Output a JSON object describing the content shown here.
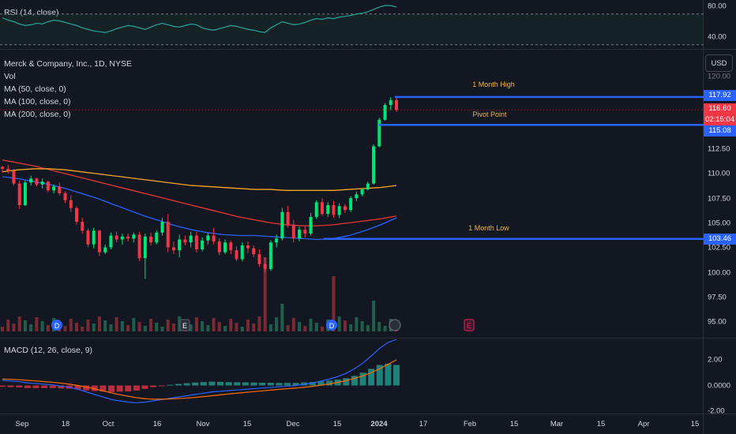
{
  "symbol_title": "Merck & Company, Inc., 1D, NYSE",
  "currency": "USD",
  "indicators": {
    "vol": "Vol",
    "ma50": "MA (50, close, 0)",
    "ma100": "MA (100, close, 0)",
    "ma200": "MA (200, close, 0)",
    "rsi": "RSI (14, close)",
    "macd": "MACD (12, 26, close, 9)"
  },
  "rsi_axis": {
    "ticks": [
      "80.00",
      "40.00"
    ]
  },
  "price_axis": {
    "ticks": [
      "120.00",
      "112.50",
      "110.00",
      "107.50",
      "105.00",
      "102.50",
      "100.00",
      "97.50",
      "95.00"
    ]
  },
  "macd_axis": {
    "ticks": [
      "2.00",
      "0.0000",
      "-2.00"
    ]
  },
  "x_axis": {
    "labels": [
      "Sep",
      "18",
      "Oct",
      "16",
      "Nov",
      "15",
      "Dec",
      "15",
      "2024",
      "17",
      "Feb",
      "15",
      "Mar",
      "15",
      "Apr",
      "15"
    ]
  },
  "levels": {
    "month_high": {
      "label": "1 Month High",
      "value": "117.92"
    },
    "pivot": {
      "label": "Pivot Point",
      "value": "115.08"
    },
    "month_low": {
      "label": "1 Month Low",
      "value": "103.46"
    }
  },
  "last_price": {
    "value": "116.60",
    "countdown": "02:15:04"
  },
  "event_markers": [
    "D",
    "E",
    "D",
    "E"
  ],
  "colors": {
    "background": "#131722",
    "up": "#00e676",
    "down": "#f23645",
    "ma50": "#2962ff",
    "ma100": "#e53935",
    "ma200": "#f5a623",
    "level_line": "#2962ff",
    "level_label": "#f2b640",
    "rsi": "#26a69a"
  },
  "chart_data": {
    "type": "candlestick",
    "title": "Merck & Company, Inc., 1D, NYSE",
    "ylim": [
      94,
      121.5
    ],
    "series": [
      {
        "name": "MA (50, close, 0)",
        "values": [
          109.8,
          109.6,
          109.3,
          109,
          108.6,
          108.1,
          107.6,
          107,
          106.4,
          105.8,
          105.3,
          104.8,
          104.4,
          104.1,
          103.9,
          103.8,
          103.8,
          103.7,
          103.6,
          103.5,
          103.4,
          103.5,
          103.8,
          104.3,
          104.9,
          105.6
        ]
      },
      {
        "name": "MA (100, close, 0)",
        "values": [
          111.5,
          111.2,
          110.9,
          110.5,
          110.1,
          109.7,
          109.3,
          108.9,
          108.5,
          108.1,
          107.7,
          107.3,
          106.9,
          106.5,
          106.1,
          105.7,
          105.4,
          105.1,
          104.9,
          104.8,
          104.8,
          104.9,
          105.1,
          105.3,
          105.5,
          105.8
        ]
      },
      {
        "name": "MA (200, close, 0)",
        "values": [
          110.3,
          110.5,
          110.6,
          110.6,
          110.5,
          110.3,
          110.1,
          109.9,
          109.7,
          109.5,
          109.3,
          109.1,
          108.9,
          108.8,
          108.7,
          108.6,
          108.5,
          108.5,
          108.4,
          108.4,
          108.4,
          108.4,
          108.5,
          108.6,
          108.7,
          108.9
        ]
      }
    ],
    "candles": [
      [
        110.8,
        110.9,
        110.2,
        110.6
      ],
      [
        110.6,
        111.0,
        110.1,
        110.4
      ],
      [
        110.4,
        110.6,
        108.9,
        109.1
      ],
      [
        109.1,
        109.4,
        106.5,
        106.9
      ],
      [
        106.9,
        109.4,
        106.8,
        109.2
      ],
      [
        109.2,
        109.9,
        108.9,
        109.6
      ],
      [
        109.6,
        109.7,
        108.8,
        109.0
      ],
      [
        109.0,
        109.6,
        108.6,
        109.3
      ],
      [
        109.3,
        109.4,
        108.2,
        108.4
      ],
      [
        108.4,
        109.0,
        108.1,
        108.8
      ],
      [
        108.8,
        109.2,
        107.9,
        108.1
      ],
      [
        108.1,
        108.3,
        107.1,
        107.4
      ],
      [
        107.4,
        107.9,
        106.2,
        106.6
      ],
      [
        106.6,
        106.8,
        104.9,
        105.2
      ],
      [
        105.2,
        105.6,
        104.0,
        104.3
      ],
      [
        104.3,
        104.5,
        102.6,
        102.9
      ],
      [
        102.9,
        104.6,
        102.5,
        104.3
      ],
      [
        104.3,
        104.4,
        101.7,
        102.1
      ],
      [
        102.1,
        102.9,
        101.9,
        102.6
      ],
      [
        102.6,
        104.1,
        102.4,
        103.8
      ],
      [
        103.8,
        104.2,
        103.1,
        103.4
      ],
      [
        103.4,
        104.0,
        102.9,
        103.7
      ],
      [
        103.7,
        104.0,
        103.2,
        103.5
      ],
      [
        103.5,
        104.1,
        103.1,
        103.9
      ],
      [
        103.9,
        104.2,
        101.2,
        101.5
      ],
      [
        101.5,
        104.0,
        99.4,
        103.7
      ],
      [
        103.7,
        104.1,
        102.8,
        103.1
      ],
      [
        103.1,
        104.3,
        102.9,
        104.1
      ],
      [
        104.1,
        105.6,
        103.8,
        105.2
      ],
      [
        105.2,
        106.0,
        102.1,
        102.6
      ],
      [
        102.6,
        103.2,
        101.9,
        102.3
      ],
      [
        102.3,
        103.9,
        101.6,
        103.4
      ],
      [
        103.4,
        103.8,
        102.8,
        103.1
      ],
      [
        103.1,
        104.2,
        102.6,
        103.8
      ],
      [
        103.8,
        104.2,
        102.1,
        102.4
      ],
      [
        102.4,
        103.6,
        102.2,
        103.3
      ],
      [
        103.3,
        104.1,
        102.9,
        103.8
      ],
      [
        103.8,
        104.6,
        102.9,
        103.2
      ],
      [
        103.2,
        103.5,
        101.8,
        102.1
      ],
      [
        102.1,
        103.4,
        101.9,
        103.1
      ],
      [
        103.1,
        103.3,
        101.9,
        102.3
      ],
      [
        102.3,
        102.7,
        101.2,
        101.4
      ],
      [
        101.4,
        103.1,
        101.2,
        102.8
      ],
      [
        102.8,
        103.2,
        102.0,
        102.5
      ],
      [
        102.5,
        102.8,
        101.6,
        101.9
      ],
      [
        101.9,
        102.4,
        100.6,
        100.9
      ],
      [
        100.9,
        101.6,
        100.1,
        100.4
      ],
      [
        100.4,
        103.3,
        100.2,
        103.1
      ],
      [
        103.1,
        103.9,
        102.6,
        103.5
      ],
      [
        103.5,
        106.6,
        103.3,
        106.2
      ],
      [
        106.2,
        106.8,
        104.6,
        104.9
      ],
      [
        104.9,
        105.4,
        103.1,
        103.5
      ],
      [
        103.5,
        104.7,
        103.2,
        104.4
      ],
      [
        104.4,
        104.8,
        103.6,
        104.0
      ],
      [
        104.0,
        106.1,
        103.8,
        105.7
      ],
      [
        105.7,
        107.4,
        105.5,
        107.2
      ],
      [
        107.2,
        107.6,
        105.8,
        106.0
      ],
      [
        106.0,
        107.2,
        105.7,
        106.9
      ],
      [
        106.9,
        107.3,
        105.6,
        105.9
      ],
      [
        105.9,
        107.1,
        105.6,
        106.8
      ],
      [
        106.8,
        107.0,
        106.1,
        106.4
      ],
      [
        106.4,
        107.8,
        106.2,
        107.6
      ],
      [
        107.6,
        108.3,
        107.3,
        108.0
      ],
      [
        108.0,
        108.6,
        107.8,
        108.5
      ],
      [
        108.5,
        109.3,
        108.4,
        109.1
      ],
      [
        109.1,
        113.1,
        109.0,
        112.9
      ],
      [
        112.9,
        115.8,
        112.8,
        115.6
      ],
      [
        115.6,
        117.3,
        115.5,
        117.1
      ],
      [
        117.1,
        117.9,
        116.6,
        117.6
      ],
      [
        117.6,
        117.9,
        116.4,
        116.6
      ]
    ],
    "rsi_values": [
      65,
      62,
      60,
      57,
      55,
      56,
      58,
      57,
      60,
      62,
      61,
      59,
      57,
      55,
      52,
      50,
      48,
      47,
      46,
      48,
      51,
      53,
      55,
      54,
      52,
      50,
      53,
      56,
      58,
      56,
      54,
      53,
      55,
      57,
      56,
      52,
      50,
      49,
      51,
      53,
      55,
      54,
      52,
      50,
      49,
      47,
      46,
      52,
      56,
      60,
      58,
      56,
      57,
      59,
      62,
      64,
      63,
      65,
      64,
      66,
      67,
      68,
      70,
      71,
      73,
      76,
      79,
      81,
      81,
      79
    ],
    "macd_values": [
      0.4,
      0.35,
      0.3,
      0.2,
      0.15,
      0.1,
      0.05,
      -0.05,
      -0.15,
      -0.3,
      -0.5,
      -0.7,
      -0.9,
      -1.1,
      -1.2,
      -1.3,
      -1.35,
      -1.3,
      -1.2,
      -1.1,
      -1.0,
      -0.9,
      -0.8,
      -0.7,
      -0.6,
      -0.5,
      -0.45,
      -0.4,
      -0.35,
      -0.3,
      -0.25,
      -0.2,
      -0.15,
      -0.1,
      -0.05,
      0.0,
      0.1,
      0.2,
      0.35,
      0.5,
      0.7,
      0.95,
      1.3,
      1.75,
      2.3,
      2.9,
      3.35,
      3.6
    ],
    "signal_values": [
      0.5,
      0.48,
      0.45,
      0.4,
      0.35,
      0.3,
      0.25,
      0.18,
      0.1,
      0.0,
      -0.12,
      -0.26,
      -0.42,
      -0.58,
      -0.72,
      -0.84,
      -0.95,
      -1.03,
      -1.07,
      -1.07,
      -1.05,
      -1.02,
      -0.98,
      -0.93,
      -0.87,
      -0.8,
      -0.73,
      -0.66,
      -0.6,
      -0.54,
      -0.48,
      -0.42,
      -0.36,
      -0.3,
      -0.25,
      -0.2,
      -0.14,
      -0.07,
      0.02,
      0.12,
      0.24,
      0.38,
      0.55,
      0.75,
      1.0,
      1.3,
      1.65,
      2.0
    ]
  }
}
